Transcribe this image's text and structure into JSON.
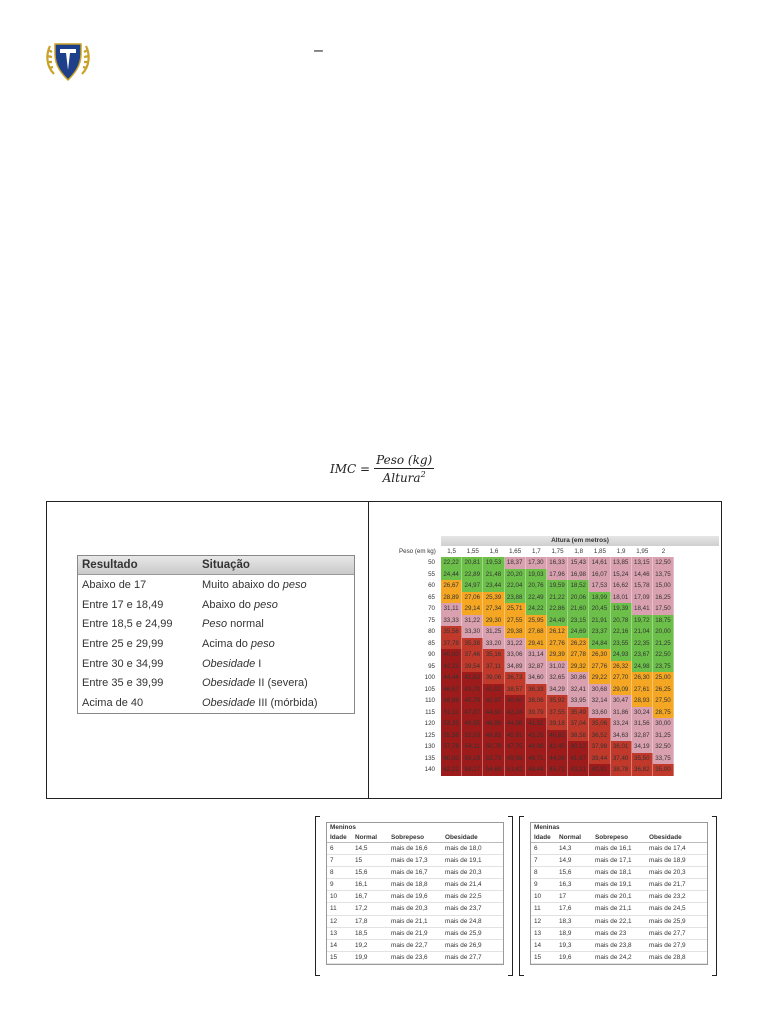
{
  "header": {
    "logo_icon": "laurel-shield-logo",
    "dash": "–"
  },
  "formula": {
    "lhs": "IMC =",
    "numerator": "Peso (kg)",
    "denominator": "Altura",
    "exponent": "2"
  },
  "imc_table": {
    "headers": [
      "Resultado",
      "Situação"
    ],
    "rows": [
      {
        "resultado": "Abaixo de 17",
        "situacao": "Muito abaixo do peso"
      },
      {
        "resultado": "Entre 17 e 18,49",
        "situacao": "Abaixo do peso"
      },
      {
        "resultado": "Entre 18,5 e 24,99",
        "situacao": "Peso normal"
      },
      {
        "resultado": "Entre 25 e 29,99",
        "situacao": "Acima do peso"
      },
      {
        "resultado": "Entre 30 e 34,99",
        "situacao": "Obesidade I"
      },
      {
        "resultado": "Entre 35 e 39,99",
        "situacao": "Obesidade II (severa)"
      },
      {
        "resultado": "Acima de 40",
        "situacao": "Obesidade III (mórbida)"
      }
    ]
  },
  "chart_data": {
    "type": "heatmap",
    "title": "Altura (em metros)",
    "row_label": "Peso (em kg)",
    "columns": [
      "1,5",
      "1,55",
      "1,6",
      "1,65",
      "1,7",
      "1,75",
      "1,8",
      "1,85",
      "1,9",
      "1,95",
      "2"
    ],
    "rows": [
      "50",
      "55",
      "60",
      "65",
      "70",
      "75",
      "80",
      "85",
      "90",
      "95",
      "100",
      "105",
      "110",
      "115",
      "120",
      "125",
      "130",
      "135",
      "140"
    ],
    "colors": {
      "under": "#d9a0b0",
      "normal": "#6cc04a",
      "over": "#f5a623",
      "obese": "#c0392b",
      "severe": "#9e1b1b"
    },
    "values": [
      [
        "22,22",
        "20,81",
        "19,53",
        "18,37",
        "17,30",
        "16,33",
        "15,43",
        "14,61",
        "13,85",
        "13,15",
        "12,50"
      ],
      [
        "24,44",
        "22,89",
        "21,48",
        "20,20",
        "19,03",
        "17,96",
        "16,98",
        "16,07",
        "15,24",
        "14,46",
        "13,75"
      ],
      [
        "26,67",
        "24,97",
        "23,44",
        "22,04",
        "20,76",
        "19,59",
        "18,52",
        "17,53",
        "16,62",
        "15,78",
        "15,00"
      ],
      [
        "28,89",
        "27,06",
        "25,39",
        "23,88",
        "22,49",
        "21,22",
        "20,06",
        "18,99",
        "18,01",
        "17,09",
        "16,25"
      ],
      [
        "31,11",
        "29,14",
        "27,34",
        "25,71",
        "24,22",
        "22,86",
        "21,60",
        "20,45",
        "19,39",
        "18,41",
        "17,50"
      ],
      [
        "33,33",
        "31,22",
        "29,30",
        "27,55",
        "25,95",
        "24,49",
        "23,15",
        "21,91",
        "20,78",
        "19,72",
        "18,75"
      ],
      [
        "35,56",
        "33,30",
        "31,25",
        "29,38",
        "27,68",
        "26,12",
        "24,69",
        "23,37",
        "22,16",
        "21,04",
        "20,00"
      ],
      [
        "37,78",
        "35,38",
        "33,20",
        "31,22",
        "29,41",
        "27,76",
        "26,23",
        "24,84",
        "23,55",
        "22,35",
        "21,25"
      ],
      [
        "40,00",
        "37,46",
        "35,16",
        "33,06",
        "31,14",
        "29,39",
        "27,78",
        "26,30",
        "24,93",
        "23,67",
        "22,50"
      ],
      [
        "42,22",
        "39,54",
        "37,11",
        "34,89",
        "32,87",
        "31,02",
        "29,32",
        "27,76",
        "26,32",
        "24,98",
        "23,75"
      ],
      [
        "44,44",
        "41,62",
        "39,06",
        "36,73",
        "34,60",
        "32,65",
        "30,86",
        "29,22",
        "27,70",
        "26,30",
        "25,00"
      ],
      [
        "46,67",
        "43,70",
        "41,02",
        "38,57",
        "36,33",
        "34,29",
        "32,41",
        "30,68",
        "29,09",
        "27,61",
        "26,25"
      ],
      [
        "48,89",
        "45,79",
        "42,97",
        "40,40",
        "38,06",
        "35,92",
        "33,95",
        "32,14",
        "30,47",
        "28,93",
        "27,50"
      ],
      [
        "51,11",
        "47,87",
        "44,92",
        "42,24",
        "39,79",
        "37,55",
        "35,49",
        "33,60",
        "31,86",
        "30,24",
        "28,75"
      ],
      [
        "53,33",
        "49,95",
        "46,88",
        "44,08",
        "41,52",
        "39,18",
        "37,04",
        "35,06",
        "33,24",
        "31,56",
        "30,00"
      ],
      [
        "55,56",
        "52,03",
        "48,83",
        "45,91",
        "43,25",
        "40,82",
        "38,58",
        "36,52",
        "34,63",
        "32,87",
        "31,25"
      ],
      [
        "57,78",
        "54,11",
        "50,78",
        "47,75",
        "44,98",
        "42,45",
        "40,12",
        "37,98",
        "36,01",
        "34,19",
        "32,50"
      ],
      [
        "60,00",
        "56,19",
        "52,73",
        "49,59",
        "46,71",
        "44,08",
        "41,67",
        "39,44",
        "37,40",
        "35,50",
        "33,75"
      ],
      [
        "62,22",
        "58,27",
        "54,69",
        "51,42",
        "48,44",
        "45,71",
        "43,21",
        "40,91",
        "38,78",
        "36,82",
        "35,00"
      ]
    ]
  },
  "meninos": {
    "title": "Meninos",
    "headers": [
      "Idade",
      "Normal",
      "Sobrepeso",
      "Obesidade"
    ],
    "rows": [
      [
        "6",
        "14,5",
        "mais de 16,6",
        "mais de 18,0"
      ],
      [
        "7",
        "15",
        "mais de 17,3",
        "mais de 19,1"
      ],
      [
        "8",
        "15,6",
        "mais de 16,7",
        "mais de 20,3"
      ],
      [
        "9",
        "16,1",
        "mais de 18,8",
        "mais de 21,4"
      ],
      [
        "10",
        "16,7",
        "mais de 19,6",
        "mais de 22,5"
      ],
      [
        "11",
        "17,2",
        "mais de 20,3",
        "mais de 23,7"
      ],
      [
        "12",
        "17,8",
        "mais de 21,1",
        "mais de 24,8"
      ],
      [
        "13",
        "18,5",
        "mais de 21,9",
        "mais de 25,9"
      ],
      [
        "14",
        "19,2",
        "mais de 22,7",
        "mais de 26,9"
      ],
      [
        "15",
        "19,9",
        "mais de 23,6",
        "mais de 27,7"
      ]
    ]
  },
  "meninas": {
    "title": "Meninas",
    "headers": [
      "Idade",
      "Normal",
      "Sobrepeso",
      "Obesidade"
    ],
    "rows": [
      [
        "6",
        "14,3",
        "mais de 16,1",
        "mais de 17,4"
      ],
      [
        "7",
        "14,9",
        "mais de 17,1",
        "mais de 18,9"
      ],
      [
        "8",
        "15,6",
        "mais de 18,1",
        "mais de 20,3"
      ],
      [
        "9",
        "16,3",
        "mais de 19,1",
        "mais de 21,7"
      ],
      [
        "10",
        "17",
        "mais de 20,1",
        "mais de 23,2"
      ],
      [
        "11",
        "17,6",
        "mais de 21,1",
        "mais de 24,5"
      ],
      [
        "12",
        "18,3",
        "mais de 22,1",
        "mais de 25,9"
      ],
      [
        "13",
        "18,9",
        "mais de 23",
        "mais de 27,7"
      ],
      [
        "14",
        "19,3",
        "mais de 23,8",
        "mais de 27,9"
      ],
      [
        "15",
        "19,6",
        "mais de 24,2",
        "mais de 28,8"
      ]
    ]
  }
}
